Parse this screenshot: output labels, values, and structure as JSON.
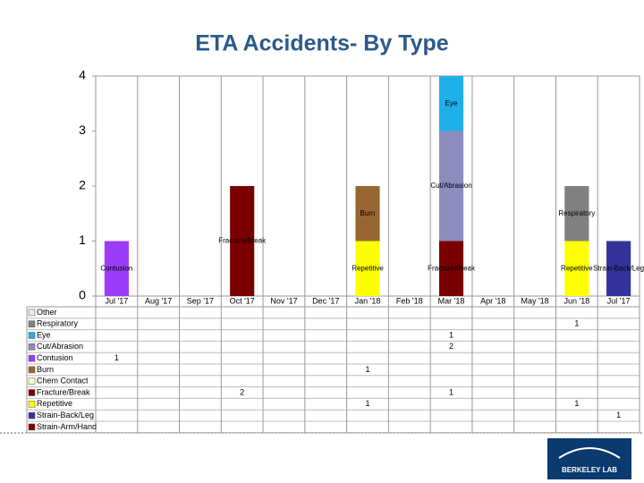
{
  "chart_data": {
    "type": "stacked-bar",
    "title": "ETA Accidents- By Type",
    "categories": [
      "Jul '17",
      "Aug '17",
      "Sep '17",
      "Oct '17",
      "Nov '17",
      "Dec '17",
      "Jan '18",
      "Feb '18",
      "Mar '18",
      "Apr '18",
      "May '18",
      "Jun '18",
      "Jul '17"
    ],
    "ylim": [
      0,
      4
    ],
    "yticks": [
      0,
      1,
      2,
      3,
      4
    ],
    "series": [
      {
        "name": "Other",
        "color": "#e8e8e8",
        "values": [
          null,
          null,
          null,
          null,
          null,
          null,
          null,
          null,
          null,
          null,
          null,
          null,
          null
        ]
      },
      {
        "name": "Respiratory",
        "color": "#808080",
        "values": [
          null,
          null,
          null,
          null,
          null,
          null,
          null,
          null,
          null,
          null,
          null,
          1,
          null
        ]
      },
      {
        "name": "Eye",
        "color": "#1fb0ea",
        "values": [
          null,
          null,
          null,
          null,
          null,
          null,
          null,
          null,
          1,
          null,
          null,
          null,
          null
        ]
      },
      {
        "name": "Cut/Abrasion",
        "color": "#8c8cbf",
        "values": [
          null,
          null,
          null,
          null,
          null,
          null,
          null,
          null,
          2,
          null,
          null,
          null,
          null
        ]
      },
      {
        "name": "Contusion",
        "color": "#9b3cf7",
        "values": [
          1,
          null,
          null,
          null,
          null,
          null,
          null,
          null,
          null,
          null,
          null,
          null,
          null
        ]
      },
      {
        "name": "Burn",
        "color": "#996633",
        "values": [
          null,
          null,
          null,
          null,
          null,
          null,
          1,
          null,
          null,
          null,
          null,
          null,
          null
        ]
      },
      {
        "name": "Chem Contact",
        "color": "#ffffcc",
        "values": [
          null,
          null,
          null,
          null,
          null,
          null,
          null,
          null,
          null,
          null,
          null,
          null,
          null
        ]
      },
      {
        "name": "Fracture/Break",
        "color": "#7a0000",
        "values": [
          null,
          null,
          null,
          2,
          null,
          null,
          null,
          null,
          1,
          null,
          null,
          null,
          null
        ]
      },
      {
        "name": "Repetitive",
        "color": "#ffff00",
        "values": [
          null,
          null,
          null,
          null,
          null,
          null,
          1,
          null,
          null,
          null,
          null,
          1,
          null
        ]
      },
      {
        "name": "Strain-Back/Leg",
        "color": "#333399",
        "values": [
          null,
          null,
          null,
          null,
          null,
          null,
          null,
          null,
          null,
          null,
          null,
          null,
          1
        ]
      },
      {
        "name": "Strain-Arm/Hand",
        "color": "#800000",
        "values": [
          null,
          null,
          null,
          null,
          null,
          null,
          null,
          null,
          null,
          null,
          null,
          null,
          null
        ]
      }
    ]
  },
  "logo_text": "BERKELEY LAB"
}
